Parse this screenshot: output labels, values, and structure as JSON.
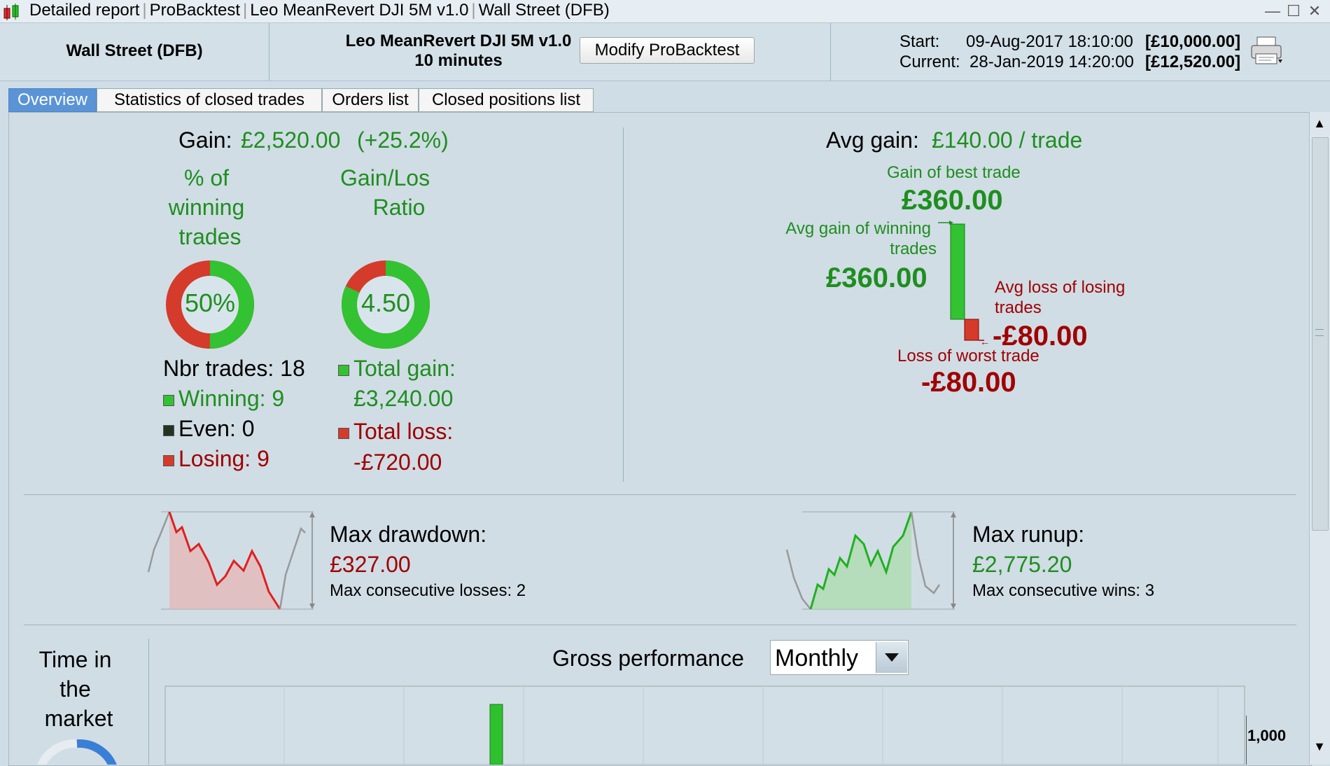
{
  "window": {
    "title_parts": [
      "Detailed report",
      "ProBacktest",
      "Leo MeanRevert DJI 5M v1.0",
      "Wall Street (DFB)"
    ],
    "minimize": "—",
    "maximize": "☐",
    "close": "✕"
  },
  "header": {
    "instrument": "Wall Street (DFB)",
    "strategy_name": "Leo MeanRevert DJI 5M v1.0",
    "timeframe": "10 minutes",
    "modify_button": "Modify ProBacktest",
    "start_label": "Start:",
    "start_value": "09-Aug-2017 18:10:00",
    "start_capital": "[£10,000.00]",
    "current_label": "Current:",
    "current_value": "28-Jan-2019 14:20:00",
    "current_capital": "[£12,520.00]",
    "print_icon": "printer-icon"
  },
  "tabs": [
    {
      "label": "Overview",
      "active": true
    },
    {
      "label": "Statistics of closed trades",
      "active": false
    },
    {
      "label": "Orders list",
      "active": false
    },
    {
      "label": "Closed positions list",
      "active": false
    }
  ],
  "overview": {
    "gain_label": "Gain:",
    "gain_value": "£2,520.00",
    "gain_pct": "(+25.2%)",
    "winning_title_l1": "% of",
    "winning_title_l2": "winning",
    "winning_title_l3": "trades",
    "winning_pct": "50%",
    "winning_fraction": 0.5,
    "ratio_title_l1": "Gain/Los",
    "ratio_title_l2": "Ratio",
    "ratio_value": "4.50",
    "ratio_green_fraction": 0.818,
    "nbr_trades": "Nbr trades: 18",
    "winning": "Winning: 9",
    "even": "Even: 0",
    "losing": "Losing: 9",
    "total_gain_label": "Total gain:",
    "total_gain_value": "£3,240.00",
    "total_loss_label": "Total loss:",
    "total_loss_value": "-£720.00",
    "avg_gain_label": "Avg gain:",
    "avg_gain_value": "£140.00 / trade",
    "best_trade_label": "Gain of best trade",
    "best_trade_value": "£360.00",
    "avg_win_label_l1": "Avg gain of winning",
    "avg_win_label_l2": "trades",
    "avg_win_value": "£360.00",
    "avg_loss_label_l1": "Avg loss of losing",
    "avg_loss_label_l2": "trades",
    "avg_loss_value": "-£80.00",
    "worst_trade_label": "Loss of worst trade",
    "worst_trade_value": "-£80.00",
    "max_drawdown_label": "Max drawdown:",
    "max_drawdown_value": "£327.00",
    "max_consec_losses": "Max consecutive losses: 2",
    "max_runup_label": "Max runup:",
    "max_runup_value": "£2,775.20",
    "max_consec_wins": "Max consecutive wins: 3",
    "time_in_market_l1": "Time in",
    "time_in_market_l2": "the",
    "time_in_market_l3": "market",
    "gross_perf_label": "Gross performance",
    "gross_perf_period": "Monthly",
    "gross_perf_ytick": "1,000"
  },
  "colors": {
    "green": "#1f8e1f",
    "red": "#a00000",
    "tab_active": "#5b94d6",
    "panel": "#d0dde5"
  }
}
